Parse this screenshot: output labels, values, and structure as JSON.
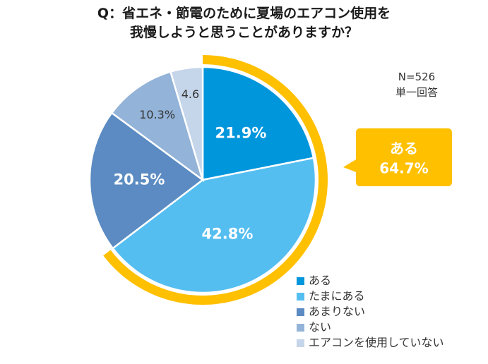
{
  "title": {
    "line1": "Q：省エネ・節電のために夏場のエアコン使用を",
    "line2": "我慢しようと思うことがありますか？"
  },
  "note": {
    "sample": "N=526",
    "type": "単一回答"
  },
  "callout": {
    "label": "ある",
    "value": "64.7%",
    "color": "#FFC000"
  },
  "chart_data": {
    "type": "pie",
    "title": "Q：省エネ・節電のために夏場のエアコン使用を我慢しようと思うことがありますか？",
    "categories": [
      "ある",
      "たまにある",
      "あまりない",
      "ない",
      "エアコンを使用していない"
    ],
    "values": [
      21.9,
      42.8,
      20.5,
      10.3,
      4.6
    ],
    "data_labels": [
      "21.9%",
      "42.8%",
      "20.5%",
      "10.3%",
      "4.6"
    ],
    "colors": [
      "#0096DC",
      "#55BEF0",
      "#5B8BC2",
      "#93B3D8",
      "#C5D5EA"
    ],
    "label_colors": [
      "#ffffff",
      "#ffffff",
      "#ffffff",
      "#333333",
      "#333333"
    ],
    "highlight_group": {
      "label": "ある",
      "value": 64.7,
      "categories": [
        "ある",
        "たまにある"
      ]
    },
    "legend_position": "bottom-right"
  }
}
